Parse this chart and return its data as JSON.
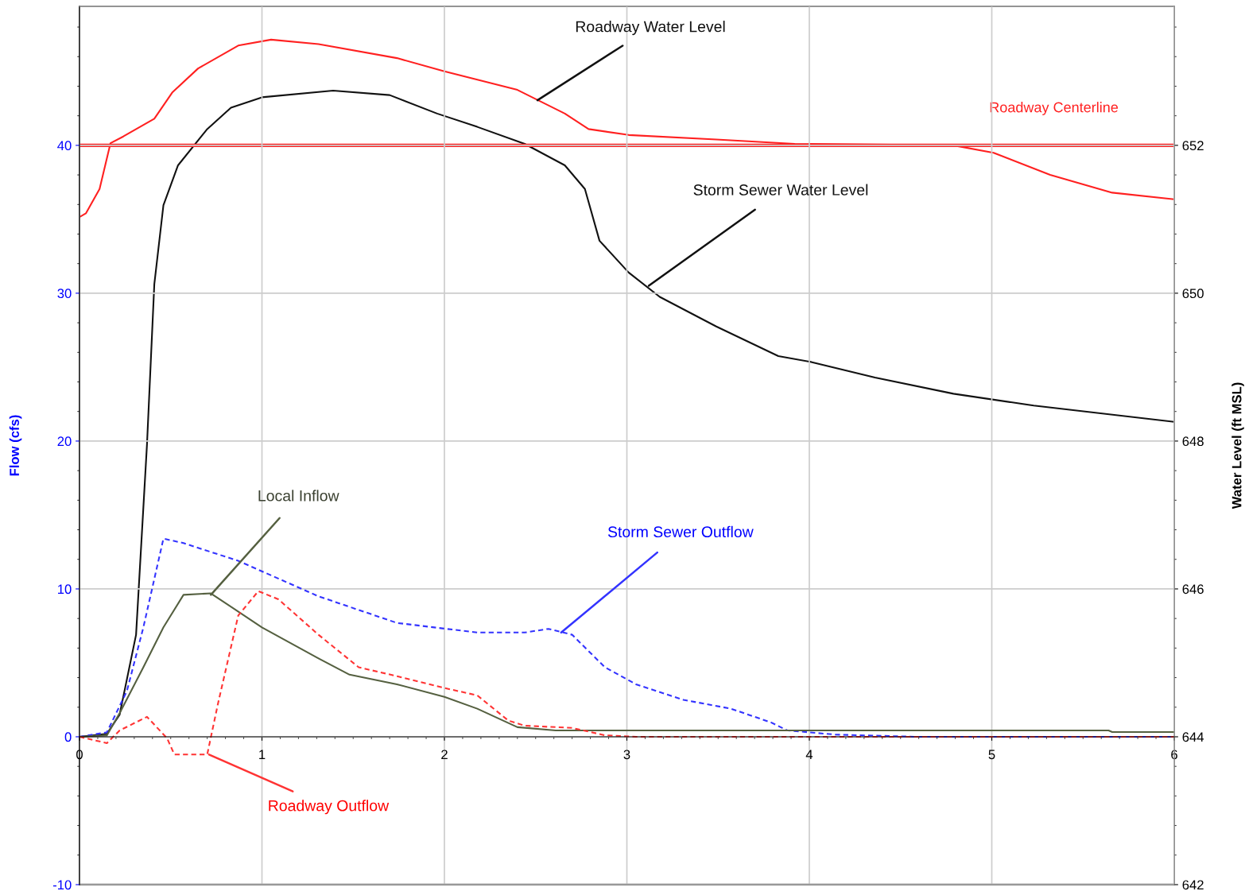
{
  "chart_data": {
    "type": "line",
    "xlabel": null,
    "ylabel": "Flow (cfs)",
    "y2label": "Water Level (ft MSL)",
    "xlim": [
      0,
      6
    ],
    "xticks": [
      0,
      1,
      2,
      3,
      4,
      5,
      6
    ],
    "ylim": [
      -10,
      49.4
    ],
    "yticks": [
      -10,
      0,
      10,
      20,
      30,
      40
    ],
    "y2lim": [
      642,
      653.88
    ],
    "y2ticks": [
      642,
      644,
      646,
      648,
      650,
      652
    ],
    "grid": true,
    "legend": false,
    "marker": "none",
    "series": [
      {
        "color": "#ff2020",
        "axis": "y2",
        "line_style": "solid",
        "x": [
          0,
          0.035,
          0.11,
          0.17,
          0.24,
          0.41,
          0.51,
          0.65,
          0.87,
          1.05,
          1.31,
          1.74,
          2.0,
          2.4,
          2.66,
          2.79,
          3.01,
          3.49,
          3.92,
          4.79,
          5.01,
          5.32,
          5.66,
          6.0
        ],
        "values": [
          651.03,
          651.08,
          651.41,
          652.03,
          652.12,
          652.36,
          652.72,
          653.04,
          653.35,
          653.43,
          653.37,
          653.18,
          653.0,
          652.75,
          652.43,
          652.22,
          652.14,
          652.08,
          652.02,
          652.0,
          651.9,
          651.6,
          651.36,
          651.27
        ]
      },
      {
        "color": "#111111",
        "axis": "y2",
        "line_style": "solid",
        "x": [
          0,
          0.15,
          0.22,
          0.31,
          0.37,
          0.41,
          0.46,
          0.54,
          0.7,
          0.83,
          1.0,
          1.39,
          1.7,
          1.96,
          2.18,
          2.44,
          2.66,
          2.77,
          2.85,
          3.01,
          3.18,
          3.49,
          3.83,
          4.01,
          4.36,
          4.79,
          5.23,
          6.0
        ],
        "values": [
          644.0,
          644.04,
          644.3,
          645.38,
          647.96,
          650.12,
          651.19,
          651.73,
          652.22,
          652.51,
          652.65,
          652.74,
          652.68,
          652.43,
          652.25,
          652.02,
          651.73,
          651.41,
          650.71,
          650.28,
          649.95,
          649.55,
          649.15,
          649.07,
          648.86,
          648.64,
          648.48,
          648.26
        ]
      },
      {
        "color": "#3333ff",
        "line_style": "dashed",
        "x": [
          0,
          0.15,
          0.26,
          0.35,
          0.46,
          0.57,
          0.87,
          1.31,
          1.74,
          2.18,
          2.44,
          2.57,
          2.7,
          2.88,
          3.05,
          3.31,
          3.57,
          3.79,
          3.88,
          4.14,
          4.58,
          6.0
        ],
        "values": [
          0,
          0.3,
          3.1,
          7.4,
          13.4,
          13.1,
          11.9,
          9.5,
          7.7,
          7.05,
          7.05,
          7.3,
          6.9,
          4.7,
          3.55,
          2.5,
          1.9,
          0.97,
          0.43,
          0.15,
          0,
          0
        ]
      },
      {
        "color": "#556040",
        "line_style": "solid",
        "x": [
          0,
          0.15,
          0.22,
          0.35,
          0.46,
          0.57,
          0.72,
          1.0,
          1.31,
          1.48,
          1.74,
          2.0,
          2.18,
          2.4,
          2.61,
          3.49,
          5.64,
          5.66,
          6.0
        ],
        "values": [
          0,
          0.1,
          1.6,
          4.7,
          7.4,
          9.6,
          9.7,
          7.4,
          5.3,
          4.2,
          3.55,
          2.7,
          1.9,
          0.65,
          0.43,
          0.43,
          0.43,
          0.32,
          0.32
        ]
      },
      {
        "color": "#ff3333",
        "line_style": "dashed",
        "x": [
          0,
          0.15,
          0.22,
          0.37,
          0.48,
          0.52,
          0.61,
          0.7,
          0.76,
          0.87,
          0.98,
          1.09,
          1.31,
          1.53,
          1.74,
          2.0,
          2.18,
          2.35,
          2.44,
          2.7,
          2.88,
          3.05,
          6.0
        ],
        "values": [
          0,
          -0.43,
          0.43,
          1.35,
          -0.1,
          -1.2,
          -1.2,
          -1.2,
          2.3,
          8.2,
          9.85,
          9.3,
          6.9,
          4.7,
          4.1,
          3.3,
          2.8,
          1.1,
          0.75,
          0.6,
          0.1,
          0,
          0
        ]
      }
    ],
    "ref_lines": [
      {
        "axis": "y2",
        "value": 652,
        "label": "Roadway Centerline",
        "color": "#ff2020"
      }
    ],
    "annotations": [
      {
        "text": "Roadway Water Level",
        "x": 2.51,
        "y": 43.05
      },
      {
        "text": "Storm Sewer Water Level",
        "x": 3.12,
        "y": 30.5
      },
      {
        "text": "Local Inflow",
        "x": 0.72,
        "y": 9.6
      },
      {
        "text": "Storm Sewer Outflow",
        "x": 2.64,
        "y": 7.05
      },
      {
        "text": "Roadway Outflow",
        "x": 0.71,
        "y": -1.2
      }
    ]
  }
}
